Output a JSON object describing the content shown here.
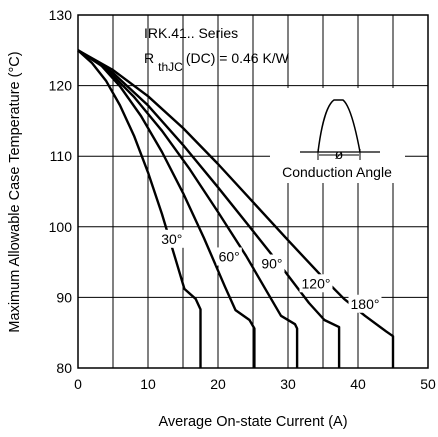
{
  "chart_data": {
    "type": "line",
    "xlabel": "Average On-state Current (A)",
    "ylabel": "Maximum Allowable Case Temperature (°C)",
    "xlim": [
      0,
      50
    ],
    "ylim": [
      80,
      130
    ],
    "x_ticks": [
      0,
      10,
      20,
      30,
      40,
      50
    ],
    "y_ticks": [
      80,
      90,
      100,
      110,
      120,
      130
    ],
    "x_minor_step": 5,
    "grid": true,
    "annotation": {
      "series_line": "IRK.41.. Series",
      "r_symbol": "R",
      "r_subscript": "thJC",
      "r_rest": "(DC) = 0.46 K/W",
      "inset_label": "Conduction Angle",
      "inset_symbol": "ø"
    },
    "series": [
      {
        "name": "30°",
        "label": "30°",
        "x": [
          0,
          2,
          4,
          6,
          8,
          10,
          12,
          14,
          15.2,
          16.8,
          17.5,
          17.5
        ],
        "y": [
          125,
          123.2,
          120.7,
          117.2,
          112.9,
          107.7,
          101.8,
          95.2,
          91.2,
          89.8,
          88.3,
          80
        ]
      },
      {
        "name": "60°",
        "label": "60°",
        "x": [
          0,
          3,
          6,
          9,
          12,
          15,
          18,
          21,
          22.5,
          24.5,
          25.2,
          25.2
        ],
        "y": [
          125,
          123.2,
          119.9,
          115.7,
          110.6,
          104.8,
          98.4,
          91.5,
          88.2,
          86.8,
          85.6,
          80
        ]
      },
      {
        "name": "90°",
        "label": "90°",
        "x": [
          0,
          4,
          8,
          12,
          16,
          20,
          24,
          27,
          29,
          31,
          31.3,
          31.3
        ],
        "y": [
          125,
          122.4,
          118.4,
          113.6,
          108.1,
          102.1,
          95.9,
          90.8,
          87.4,
          86.2,
          85.6,
          80
        ]
      },
      {
        "name": "120°",
        "label": "120°",
        "x": [
          0,
          5,
          10,
          15,
          20,
          25,
          29,
          33,
          35.2,
          37.3,
          37.3
        ],
        "y": [
          125,
          121.8,
          117.2,
          111.6,
          105.6,
          99.4,
          94.4,
          89.2,
          86.8,
          85.8,
          80
        ]
      },
      {
        "name": "180°",
        "label": "180°",
        "x": [
          0,
          5,
          10,
          15,
          20,
          25,
          30,
          35,
          38,
          41,
          44,
          45,
          45
        ],
        "y": [
          125,
          122.2,
          118.5,
          114.0,
          108.9,
          103.5,
          98.1,
          92.8,
          89.8,
          87.4,
          85.2,
          84.5,
          80
        ]
      }
    ],
    "curve_label_anchor": [
      {
        "x": 13.4,
        "y": 98.3
      },
      {
        "x": 21.6,
        "y": 95.8
      },
      {
        "x": 27.7,
        "y": 94.8
      },
      {
        "x": 34.0,
        "y": 92.0
      },
      {
        "x": 41.0,
        "y": 89.1
      }
    ]
  }
}
